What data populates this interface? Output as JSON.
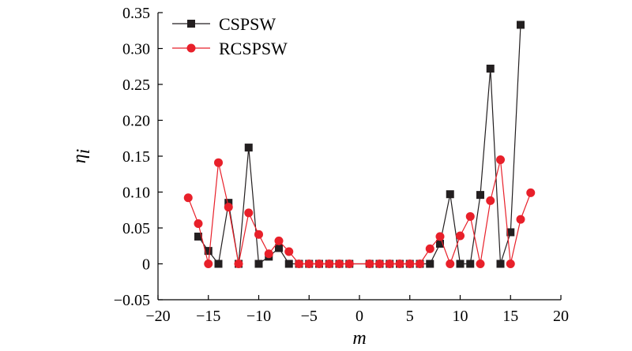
{
  "chart_data": {
    "type": "line",
    "title": "",
    "xlabel": "m",
    "ylabel_main": "η",
    "ylabel_sub": "i",
    "xlim": [
      -20,
      20
    ],
    "ylim": [
      -0.05,
      0.35
    ],
    "xticks": [
      -20,
      -15,
      -10,
      -5,
      0,
      5,
      10,
      15,
      20
    ],
    "xtick_labels": [
      "−20",
      "−15",
      "−10",
      "−5",
      "0",
      "5",
      "10",
      "15",
      "20"
    ],
    "yticks": [
      -0.05,
      0,
      0.05,
      0.1,
      0.15,
      0.2,
      0.25,
      0.3,
      0.35
    ],
    "ytick_labels": [
      "−0.05",
      "0",
      "0.05",
      "0.10",
      "0.15",
      "0.20",
      "0.25",
      "0.30",
      "0.35"
    ],
    "grid": false,
    "legend_position": "top-left",
    "series": [
      {
        "name": "CSPSW",
        "color": "#231f20",
        "marker": "square",
        "x": [
          -16,
          -15,
          -14,
          -13,
          -12,
          -11,
          -10,
          -9,
          -8,
          -7,
          -6,
          -5,
          -4,
          -3,
          -2,
          -1,
          1,
          2,
          3,
          4,
          5,
          6,
          7,
          8,
          9,
          10,
          11,
          12,
          13,
          14,
          15,
          16
        ],
        "y": [
          0.038,
          0.018,
          0.0,
          0.085,
          0.0,
          0.162,
          0.0,
          0.01,
          0.022,
          0.0,
          0.0,
          0.0,
          0.0,
          0.0,
          0.0,
          0.0,
          0.0,
          0.0,
          0.0,
          0.0,
          0.0,
          0.0,
          0.0,
          0.028,
          0.097,
          0.0,
          0.0,
          0.096,
          0.272,
          0.0,
          0.044,
          0.333
        ]
      },
      {
        "name": "RCSPSW",
        "color": "#e8202a",
        "marker": "circle",
        "x": [
          -17,
          -16,
          -15,
          -14,
          -13,
          -12,
          -11,
          -10,
          -9,
          -8,
          -7,
          -6,
          -5,
          -4,
          -3,
          -2,
          -1,
          1,
          2,
          3,
          4,
          5,
          6,
          7,
          8,
          9,
          10,
          11,
          12,
          13,
          14,
          15,
          16,
          17
        ],
        "y": [
          0.092,
          0.056,
          0.0,
          0.141,
          0.079,
          0.0,
          0.071,
          0.041,
          0.014,
          0.032,
          0.017,
          0.0,
          0.0,
          0.0,
          0.0,
          0.0,
          0.0,
          0.0,
          0.0,
          0.0,
          0.0,
          0.0,
          0.0,
          0.021,
          0.038,
          0.0,
          0.039,
          0.066,
          0.0,
          0.088,
          0.145,
          0.0,
          0.062,
          0.099
        ]
      }
    ]
  }
}
